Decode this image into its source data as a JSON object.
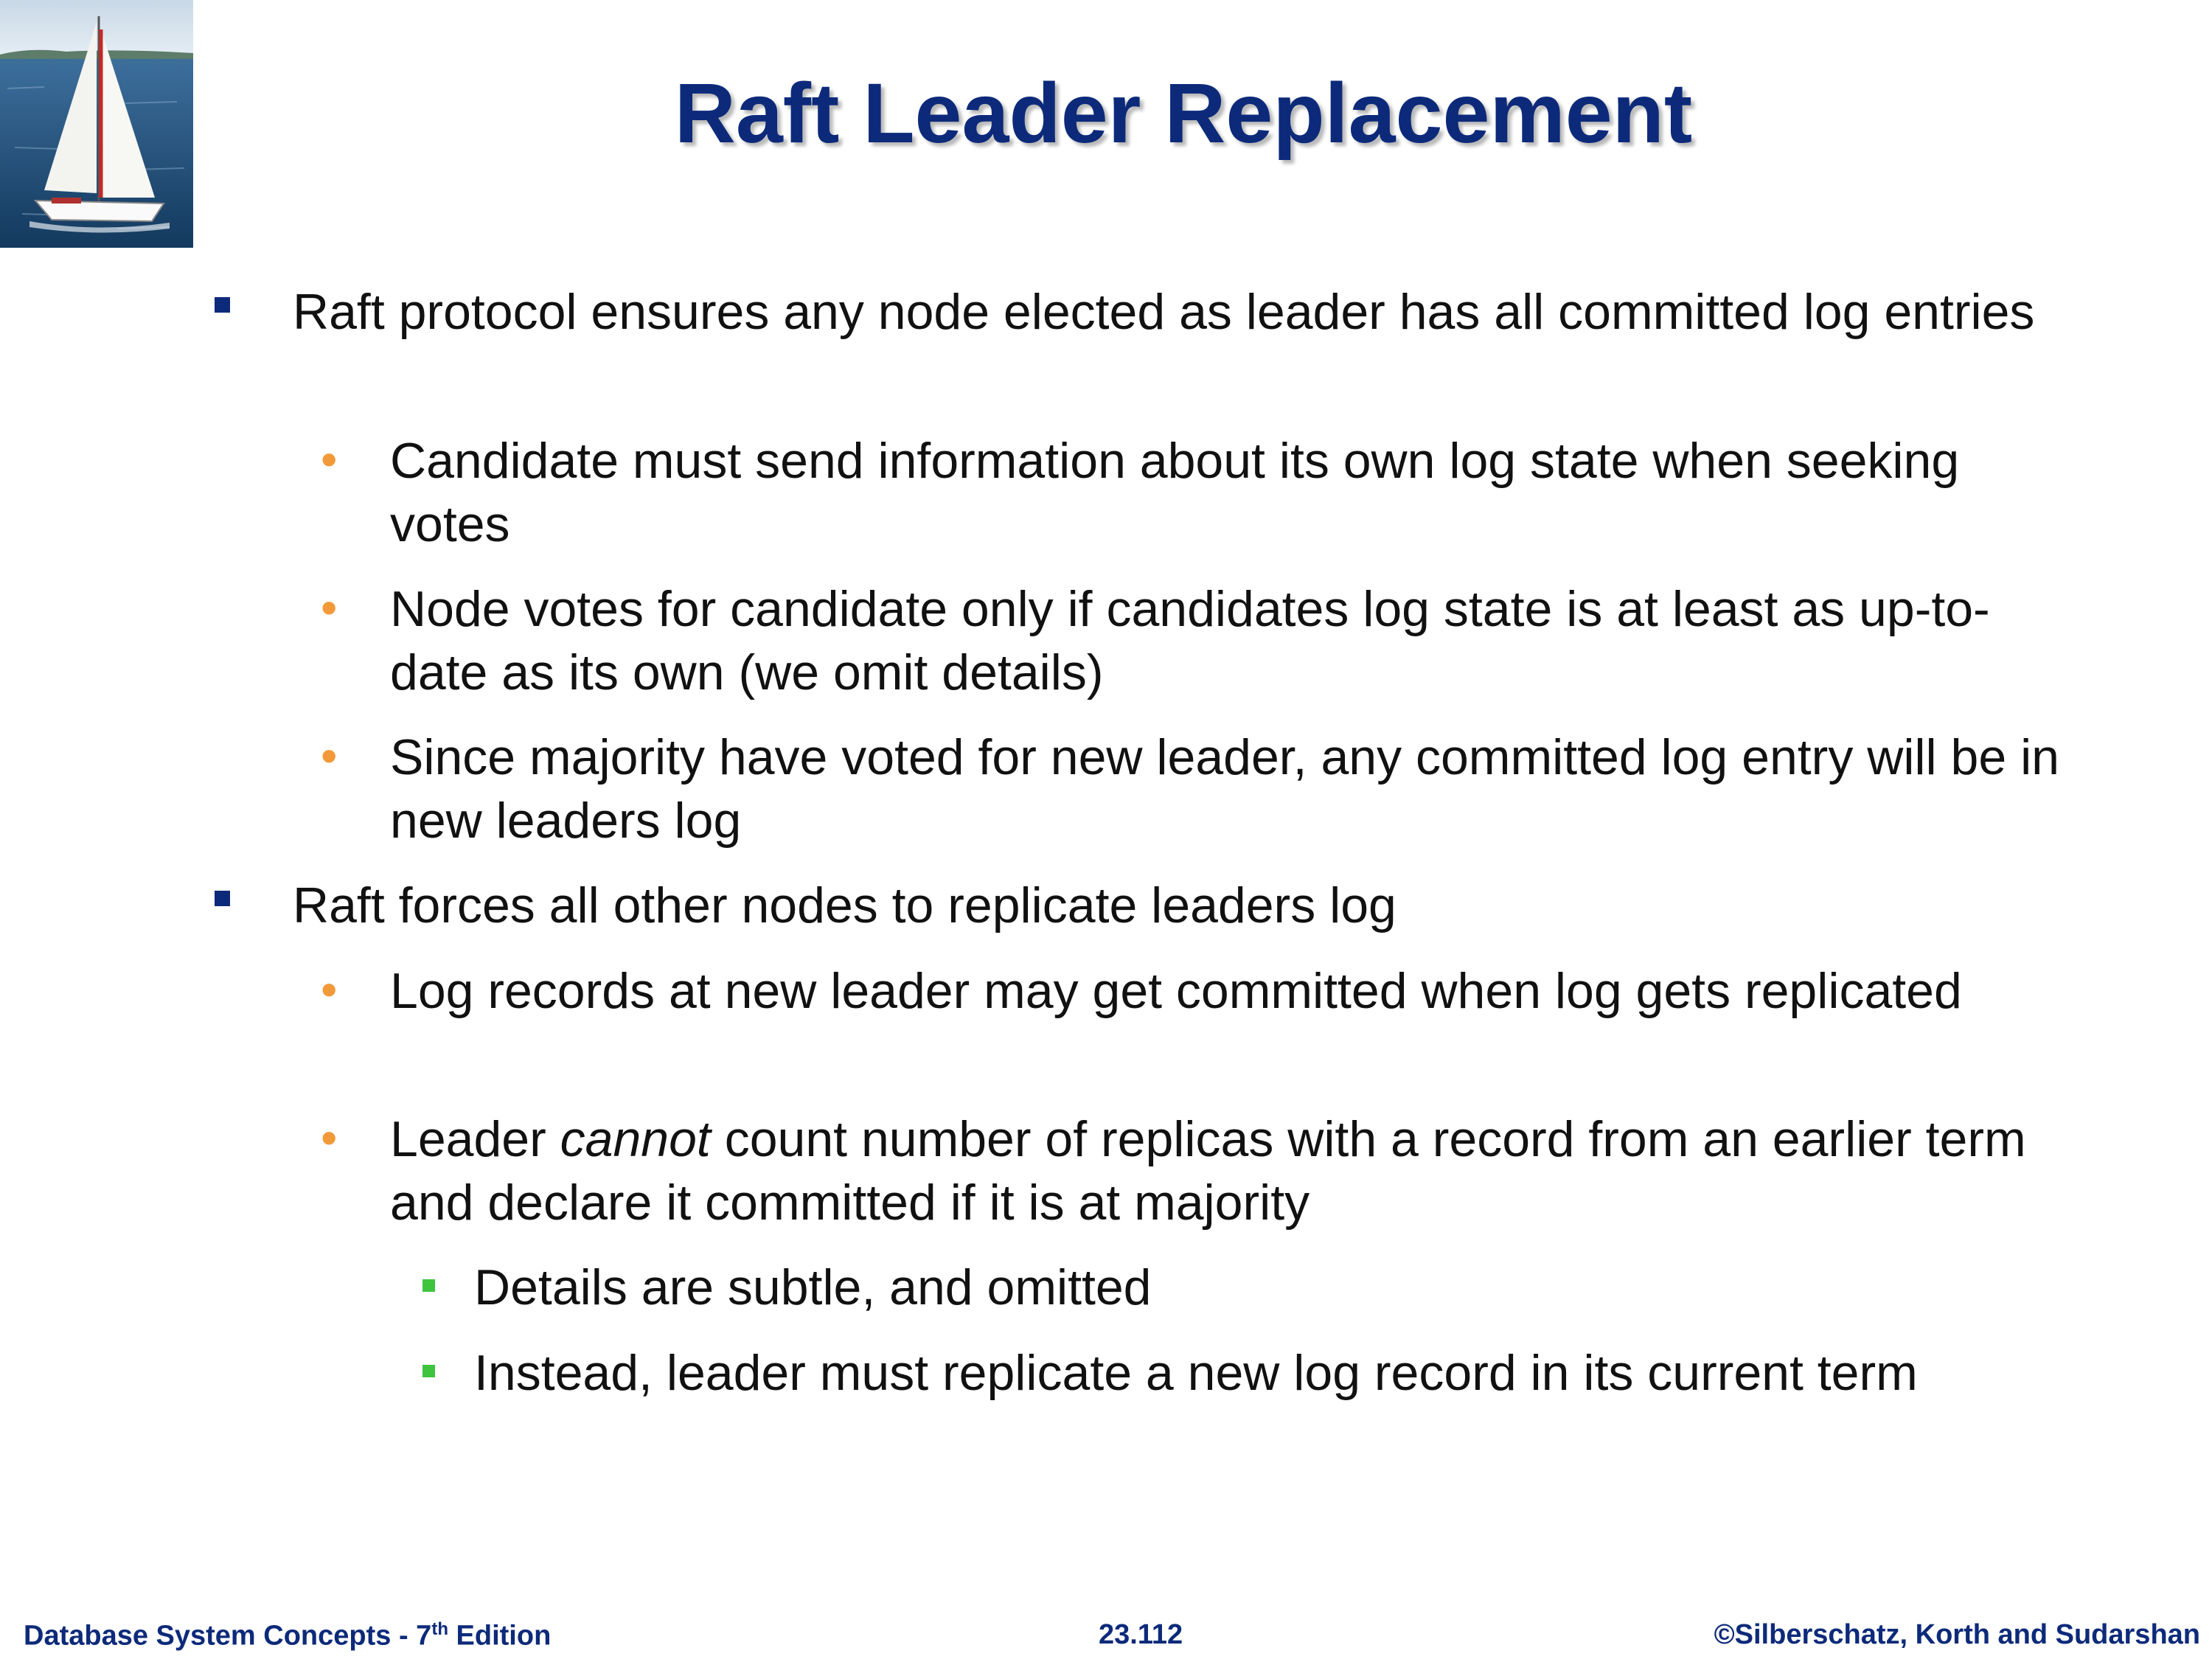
{
  "slide": {
    "title": "Raft Leader Replacement",
    "bullets": [
      {
        "level": 1,
        "text": "Raft protocol ensures any node elected as leader has all committed log entries"
      },
      {
        "level": 2,
        "text": "Candidate must send information about its own log state when seeking votes"
      },
      {
        "level": 2,
        "text": "Node votes for candidate only if candidates log state is at least as up-to-date as its own (we omit details)"
      },
      {
        "level": 2,
        "text": "Since majority have voted for new leader, any committed log entry will be in new leaders log"
      },
      {
        "level": 1,
        "text": "Raft forces all other nodes to replicate leaders log"
      },
      {
        "level": 2,
        "text": "Log records at new leader may get committed when log gets replicated"
      },
      {
        "level": 2,
        "text_before": "Leader ",
        "text_emphasis": "cannot",
        "text_after": " count number of replicas with a record from an earlier term and declare it committed if it is at majority"
      },
      {
        "level": 3,
        "text": "Details are subtle, and omitted"
      },
      {
        "level": 3,
        "text": "Instead, leader must replicate a new log record in its current term"
      }
    ]
  },
  "footer": {
    "book_prefix": "Database System Concepts - 7",
    "book_sup": "th",
    "book_suffix": " Edition",
    "page_number": "23.112",
    "copyright": "©Silberschatz, Korth and Sudarshan"
  },
  "icons": {
    "logo": "sailboat-logo",
    "level1_bullet": "square-bullet-icon",
    "level2_bullet": "dot-bullet-icon",
    "level3_bullet": "small-square-bullet-icon"
  },
  "colors": {
    "title": "#0d2a7a",
    "level1_bullet": "#0d2a7a",
    "level2_bullet": "#f29a39",
    "level3_bullet": "#3ec43e",
    "footer": "#0d2a7a"
  }
}
